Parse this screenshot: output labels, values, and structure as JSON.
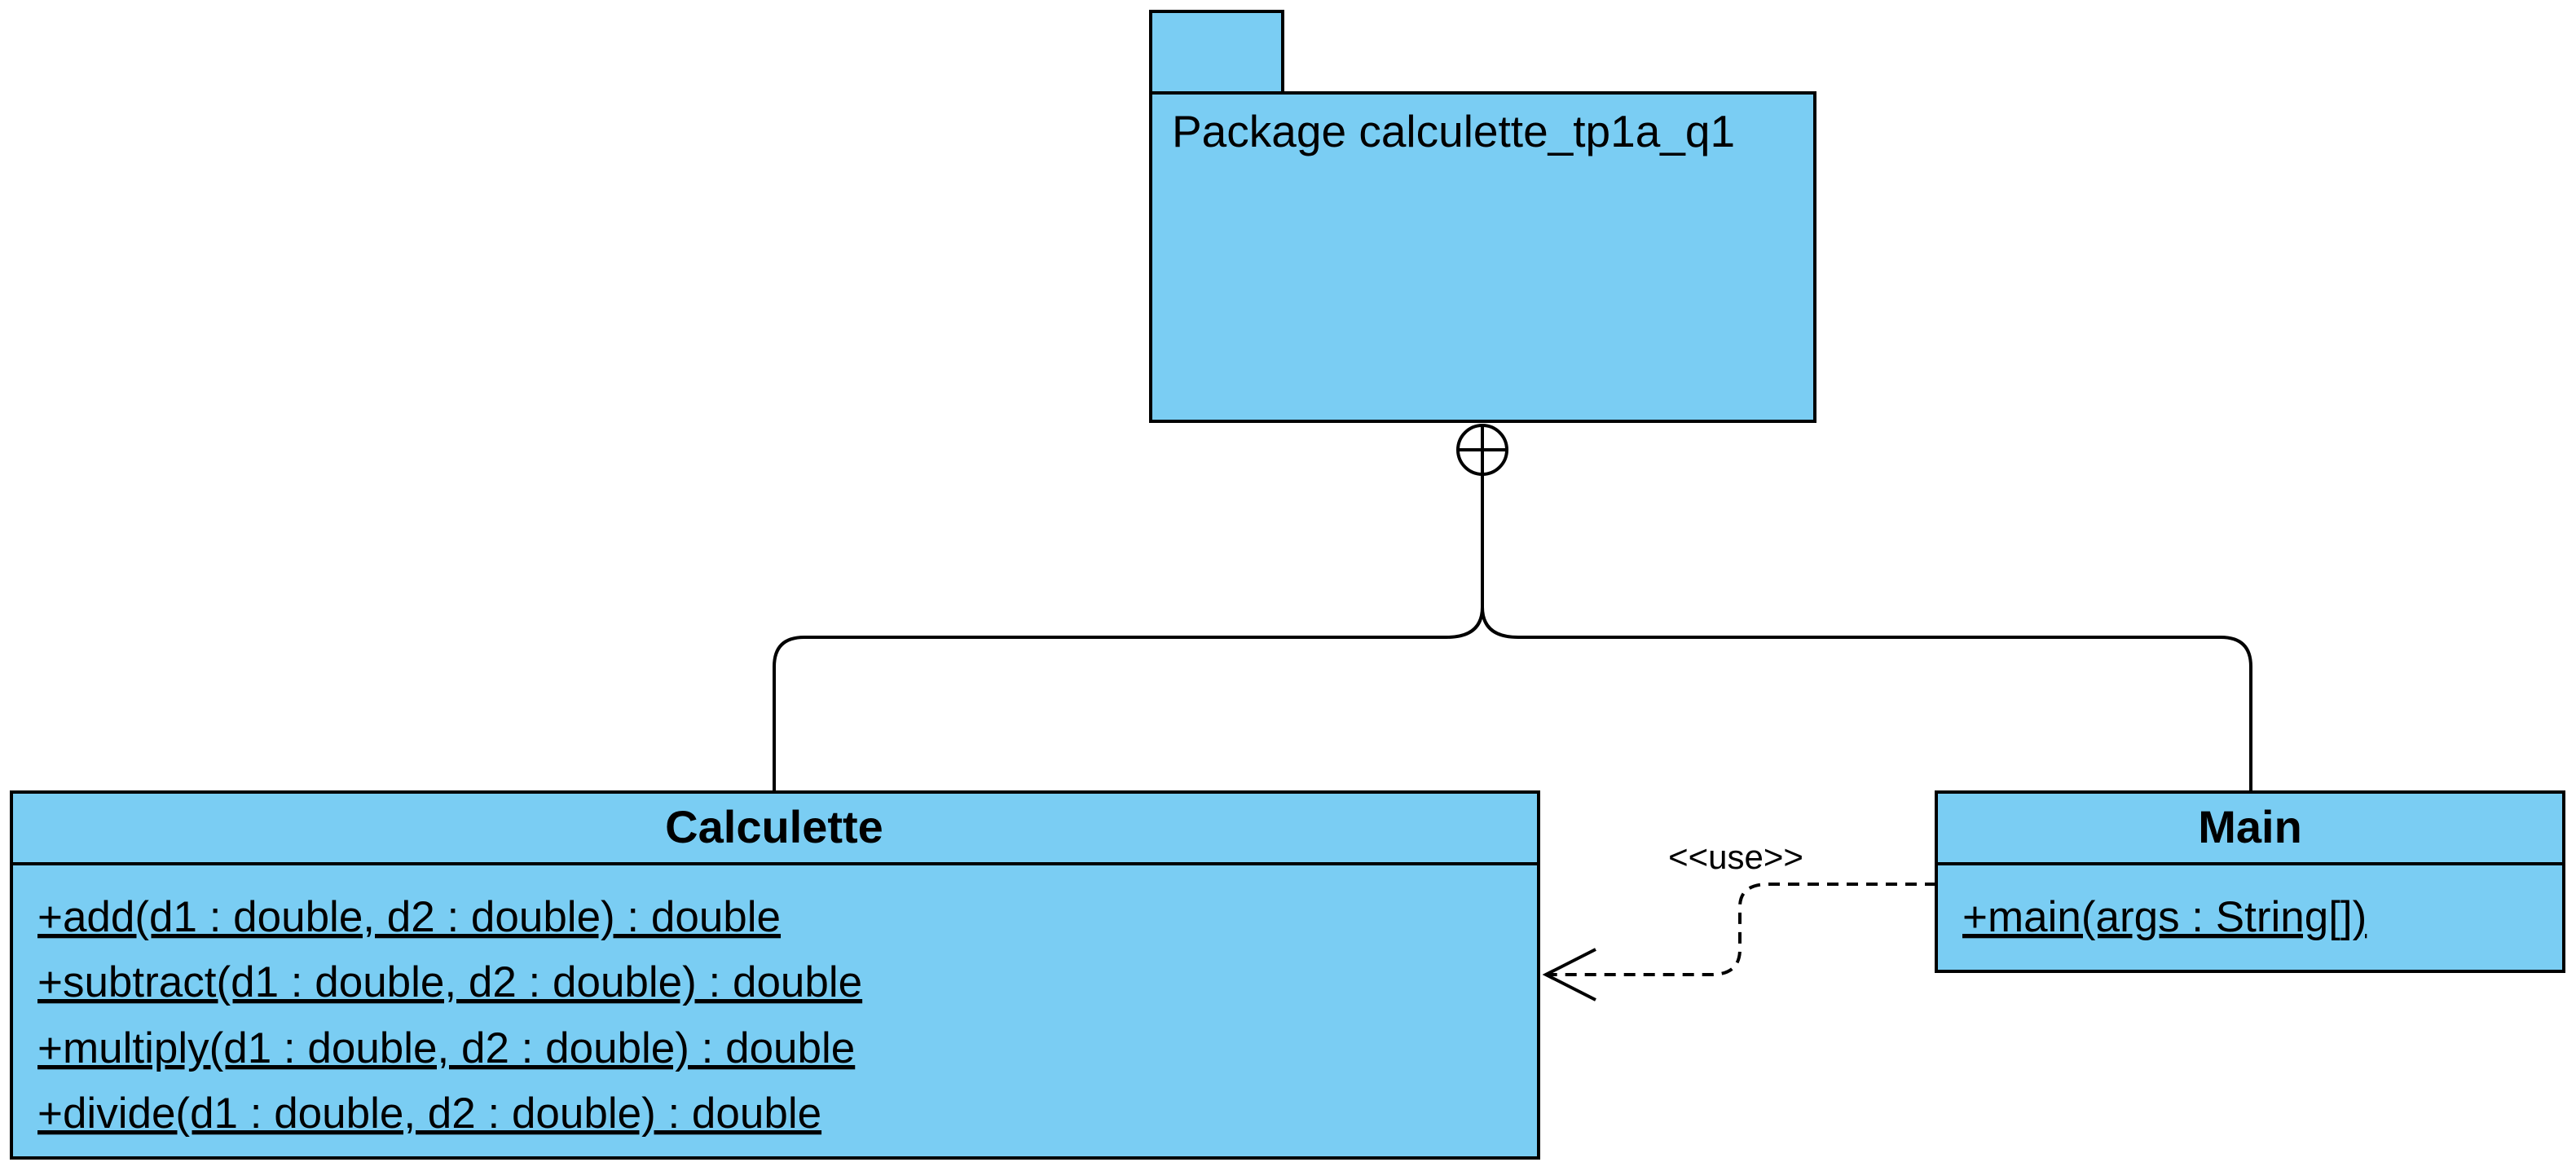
{
  "colors": {
    "fill": "#7ACDF3",
    "stroke": "#000000",
    "background": "#ffffff"
  },
  "package": {
    "name": "Package calculette_tp1a_q1"
  },
  "calculette": {
    "title": "Calculette",
    "methods": [
      "+add(d1 : double, d2 : double) : double",
      "+subtract(d1 : double, d2 : double) : double",
      "+multiply(d1 : double, d2 : double) : double",
      "+divide(d1 : double, d2 : double) : double"
    ]
  },
  "main": {
    "title": "Main",
    "methods": [
      "+main(args : String[])"
    ]
  },
  "dependency": {
    "label": "<<use>>"
  },
  "containment": {
    "symbol": "circle-plus-icon"
  }
}
